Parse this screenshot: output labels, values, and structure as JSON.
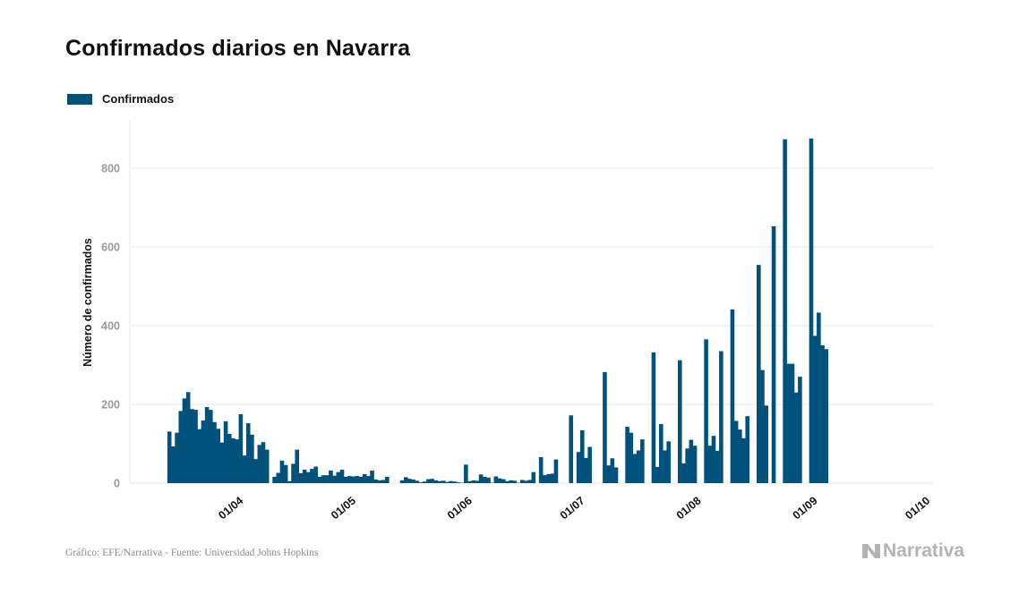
{
  "header": {
    "title": "Confirmados diarios en Navarra"
  },
  "footer": {
    "source": "Gráfico: EFE/Narrativa - Fuente: Universidad Johns Hopkins",
    "brand": "Narrativa"
  },
  "colors": {
    "bar": "#00517c",
    "grid": "#e6e6e6",
    "tick_text": "#999999"
  },
  "chart_data": {
    "type": "bar",
    "title": "Confirmados diarios en Navarra",
    "ylabel": "Número de confirmados",
    "xlabel": "",
    "legend": "top-left",
    "grid": true,
    "ylim": [
      0,
      920
    ],
    "yticks": [
      0,
      200,
      400,
      600,
      800
    ],
    "xlim": [
      "2020-03-03",
      "2020-10-03"
    ],
    "xticks": [
      {
        "date": "2020-04-01",
        "label": "01/04"
      },
      {
        "date": "2020-05-01",
        "label": "01/05"
      },
      {
        "date": "2020-06-01",
        "label": "01/06"
      },
      {
        "date": "2020-07-01",
        "label": "01/07"
      },
      {
        "date": "2020-08-01",
        "label": "01/08"
      },
      {
        "date": "2020-09-01",
        "label": "01/09"
      },
      {
        "date": "2020-10-01",
        "label": "01/10"
      }
    ],
    "series": [
      {
        "name": "Confirmados",
        "start_date": "2020-03-13",
        "values": [
          131,
          93,
          128,
          183,
          215,
          231,
          188,
          186,
          137,
          159,
          193,
          186,
          155,
          138,
          103,
          157,
          125,
          114,
          111,
          175,
          70,
          152,
          123,
          61,
          97,
          104,
          85,
          0,
          16,
          26,
          57,
          46,
          5,
          49,
          85,
          25,
          34,
          28,
          36,
          42,
          16,
          20,
          20,
          32,
          19,
          28,
          34,
          16,
          18,
          17,
          18,
          16,
          23,
          18,
          32,
          9,
          7,
          8,
          16,
          0,
          0,
          0,
          7,
          15,
          11,
          9,
          6,
          2,
          4,
          10,
          11,
          7,
          5,
          6,
          3,
          5,
          4,
          2,
          1,
          47,
          5,
          7,
          6,
          22,
          16,
          14,
          1,
          17,
          12,
          10,
          5,
          7,
          6,
          1,
          8,
          6,
          8,
          28,
          0,
          66,
          20,
          23,
          24,
          60,
          0,
          0,
          0,
          172,
          0,
          79,
          134,
          64,
          92,
          0,
          0,
          0,
          282,
          45,
          63,
          40,
          0,
          0,
          143,
          128,
          74,
          83,
          111,
          0,
          0,
          332,
          41,
          150,
          83,
          106,
          0,
          0,
          312,
          50,
          88,
          110,
          95,
          0,
          0,
          365,
          95,
          120,
          82,
          335,
          0,
          0,
          441,
          158,
          136,
          114,
          170,
          0,
          0,
          554,
          287,
          197,
          0,
          652,
          0,
          0,
          873,
          303,
          303,
          230,
          270,
          0,
          0,
          875,
          374,
          433,
          350,
          340
        ]
      }
    ]
  }
}
